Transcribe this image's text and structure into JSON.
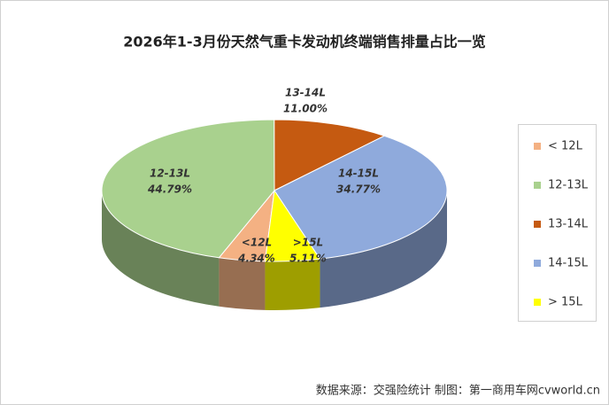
{
  "chart_data": {
    "type": "pie3d",
    "title": "2026年1-3月份天然气重卡发动机终端销售排量占比一览",
    "categories": [
      "< 12L",
      "12-13L",
      "13-14L",
      "14-15L",
      "> 15L"
    ],
    "slice_labels": [
      "<12L",
      "12-13L",
      "13-14L",
      "14-15L",
      ">15L"
    ],
    "values": [
      4.34,
      44.79,
      11.0,
      34.77,
      5.11
    ],
    "value_labels": [
      "4.34%",
      "44.79%",
      "11.00%",
      "34.77%",
      "5.11%"
    ],
    "colors": [
      "#f4b183",
      "#a9d18e",
      "#c55a11",
      "#8faadc",
      "#ffff00"
    ],
    "legend": "right",
    "source": "数据来源：交强险统计  制图：第一商用车网cvworld.cn"
  }
}
